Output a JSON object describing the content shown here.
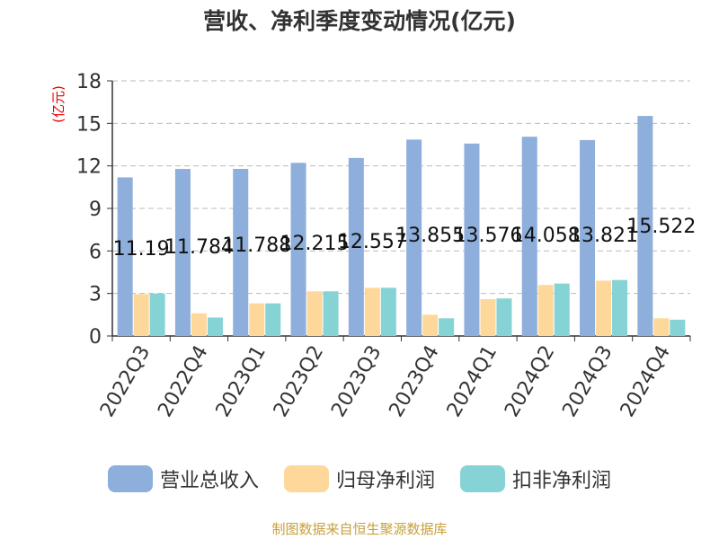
{
  "title": "营收、净利季度变动情况(亿元)",
  "source": "制图数据来自恒生聚源数据库",
  "chart_data": {
    "type": "bar",
    "title": "营收、净利季度变动情况(亿元)",
    "ylabel": "(亿元)",
    "ylim": [
      0,
      18
    ],
    "yticks": [
      "0",
      "3",
      "6",
      "9",
      "12",
      "15",
      "18"
    ],
    "grid": true,
    "legend_position": "bottom",
    "categories": [
      "2022Q3",
      "2022Q4",
      "2023Q1",
      "2023Q2",
      "2023Q3",
      "2023Q4",
      "2024Q1",
      "2024Q2",
      "2024Q3",
      "2024Q4"
    ],
    "series": [
      {
        "name": "营业总收入",
        "color": "#8eaedc",
        "values": [
          11.19,
          11.784,
          11.788,
          12.215,
          12.557,
          13.855,
          13.576,
          14.058,
          13.821,
          15.522
        ],
        "labels": [
          "11.19",
          "11.784",
          "11.788",
          "12.215",
          "12.557",
          "13.855",
          "13.576",
          "14.058",
          "13.821",
          "15.522"
        ]
      },
      {
        "name": "归母净利润",
        "color": "#fed89a",
        "values": [
          2.95,
          1.6,
          2.3,
          3.15,
          3.4,
          1.5,
          2.6,
          3.6,
          3.9,
          1.25
        ]
      },
      {
        "name": "扣非净利润",
        "color": "#86d3d6",
        "values": [
          3.0,
          1.3,
          2.3,
          3.15,
          3.4,
          1.25,
          2.65,
          3.7,
          3.95,
          1.15
        ]
      }
    ]
  }
}
